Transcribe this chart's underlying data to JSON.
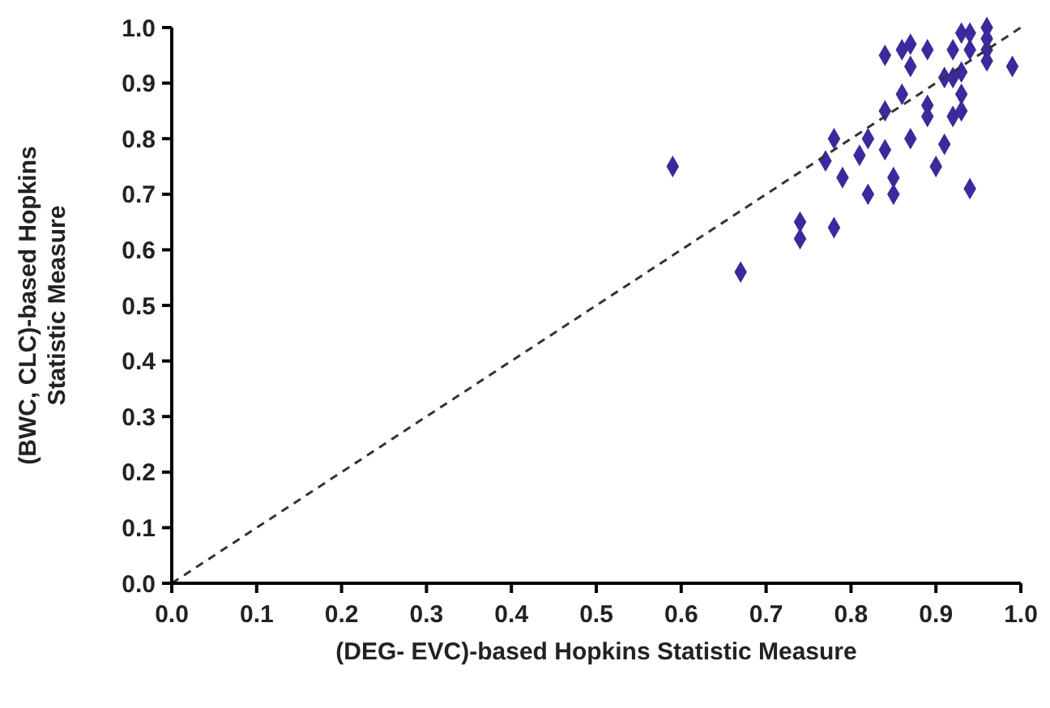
{
  "chart_data": {
    "type": "scatter",
    "xlabel": "(DEG- EVC)-based Hopkins Statistic Measure",
    "ylabel": "(BWC, CLC)-based Hopkins Statistic Measure",
    "xlim": [
      0,
      1
    ],
    "ylim": [
      0,
      1
    ],
    "xticks": [
      {
        "value": 0,
        "label": "0.0"
      },
      0.1,
      0.2,
      0.3,
      0.4,
      0.5,
      0.6,
      0.7,
      0.8,
      0.9,
      {
        "value": 1,
        "label": "1.0"
      }
    ],
    "yticks": [
      {
        "value": 0,
        "label": "0.0"
      },
      0.1,
      0.2,
      0.3,
      0.4,
      0.5,
      0.6,
      0.7,
      0.8,
      0.9,
      {
        "value": 1,
        "label": "1.0"
      }
    ],
    "grid": false,
    "series": [
      {
        "color": "#3b2a9c",
        "marker": "diamond",
        "x": [
          0.84,
          0.86,
          0.87,
          0.89,
          0.87,
          0.92,
          0.94,
          0.93,
          0.94,
          0.96,
          0.96,
          0.96,
          0.96,
          0.99,
          0.91,
          0.92,
          0.93,
          0.93,
          0.86,
          0.84,
          0.89,
          0.89,
          0.92,
          0.93,
          0.78,
          0.82,
          0.81,
          0.84,
          0.87,
          0.91,
          0.77,
          0.79,
          0.85,
          0.9,
          0.82,
          0.85,
          0.94,
          0.74,
          0.74,
          0.78,
          0.67,
          0.59
        ],
        "values": [
          0.95,
          0.96,
          0.97,
          0.96,
          0.93,
          0.96,
          0.96,
          0.99,
          0.99,
          1.0,
          0.98,
          0.96,
          0.94,
          0.93,
          0.91,
          0.91,
          0.92,
          0.88,
          0.88,
          0.85,
          0.86,
          0.84,
          0.84,
          0.85,
          0.8,
          0.8,
          0.77,
          0.78,
          0.8,
          0.79,
          0.76,
          0.73,
          0.73,
          0.75,
          0.7,
          0.7,
          0.71,
          0.65,
          0.62,
          0.64,
          0.56,
          0.75
        ]
      },
      {
        "type": "line",
        "color": "#333333",
        "line_style": "dashed",
        "marker": "none",
        "x": [
          0,
          1
        ],
        "values": [
          0,
          1
        ]
      }
    ]
  }
}
